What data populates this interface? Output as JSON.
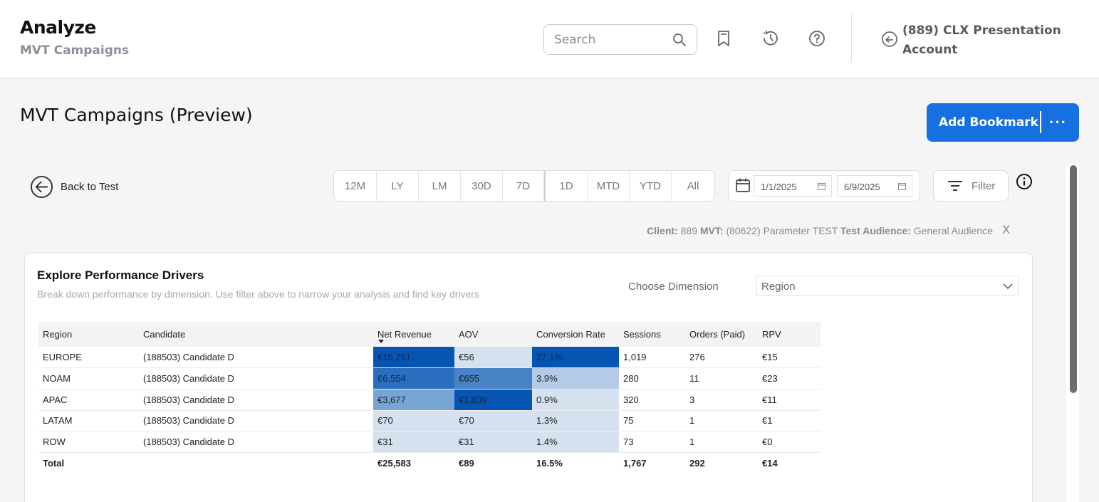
{
  "header": {
    "title": "Analyze",
    "subtitle": "MVT Campaigns",
    "search_placeholder": "Search",
    "account_name": "(889) CLX Presentation Account",
    "icons": [
      "search-icon",
      "bookmark-icon",
      "history-icon",
      "help-icon",
      "switch-account-icon"
    ]
  },
  "page": {
    "title": "MVT Campaigns (Preview)",
    "add_bookmark_label": "Add Bookmark",
    "more_label": "···"
  },
  "toolbar": {
    "back_label": "Back to Test",
    "ranges": [
      "12M",
      "LY",
      "LM",
      "30D",
      "7D",
      "1D",
      "MTD",
      "YTD",
      "All"
    ],
    "start_date": "1/1/2025",
    "end_date": "6/9/2025",
    "filter_label": "Filter"
  },
  "context": {
    "client_label": "Client:",
    "client_value": "889",
    "mvt_label": "MVT:",
    "mvt_value": "(80622) Parameter TEST",
    "audience_label": "Test Audience:",
    "audience_value": "General Audience",
    "close_label": "X"
  },
  "card": {
    "title": "Explore Performance Drivers",
    "subtitle": "Break down performance by dimension. Use filter above to narrow your analysis and find key drivers",
    "dimension_label": "Choose Dimension",
    "dimension_value": "Region"
  },
  "table": {
    "columns": [
      "Region",
      "Candidate",
      "Net Revenue",
      "AOV",
      "Conversion Rate",
      "Sessions",
      "Orders (Paid)",
      "RPV"
    ],
    "sort_column": "Net Revenue",
    "rows": [
      {
        "region": "EUROPE",
        "candidate": "(188503) Candidate D",
        "net_revenue": "€15,251",
        "aov": "€56",
        "conversion_rate": "27.1%",
        "sessions": "1,019",
        "orders": "276",
        "rpv": "€15"
      },
      {
        "region": "NOAM",
        "candidate": "(188503) Candidate D",
        "net_revenue": "€6,554",
        "aov": "€655",
        "conversion_rate": "3.9%",
        "sessions": "280",
        "orders": "11",
        "rpv": "€23"
      },
      {
        "region": "APAC",
        "candidate": "(188503) Candidate D",
        "net_revenue": "€3,677",
        "aov": "€1,839",
        "conversion_rate": "0.9%",
        "sessions": "320",
        "orders": "3",
        "rpv": "€11"
      },
      {
        "region": "LATAM",
        "candidate": "(188503) Candidate D",
        "net_revenue": "€70",
        "aov": "€70",
        "conversion_rate": "1.3%",
        "sessions": "75",
        "orders": "1",
        "rpv": "€1"
      },
      {
        "region": "ROW",
        "candidate": "(188503) Candidate D",
        "net_revenue": "€31",
        "aov": "€31",
        "conversion_rate": "1.4%",
        "sessions": "73",
        "orders": "1",
        "rpv": "€0"
      }
    ],
    "total": {
      "label": "Total",
      "net_revenue": "€25,583",
      "aov": "€89",
      "conversion_rate": "16.5%",
      "sessions": "1,767",
      "orders": "292",
      "rpv": "€14"
    },
    "heat_colors": {
      "net_revenue": [
        "#0755b3",
        "#2a6fbf",
        "#77a5d6",
        "#d5e1ef",
        "#d5e1ef"
      ],
      "aov": [
        "#d5e1ef",
        "#4783c5",
        "#0755b3",
        "#d5e1ef",
        "#d5e1ef"
      ],
      "conversion_rate": [
        "#0755b3",
        "#b3cbe6",
        "#d5e1ef",
        "#d5e1ef",
        "#d5e1ef"
      ]
    }
  },
  "colors": {
    "primary": "#1670df",
    "muted_text": "#8a8f99"
  }
}
